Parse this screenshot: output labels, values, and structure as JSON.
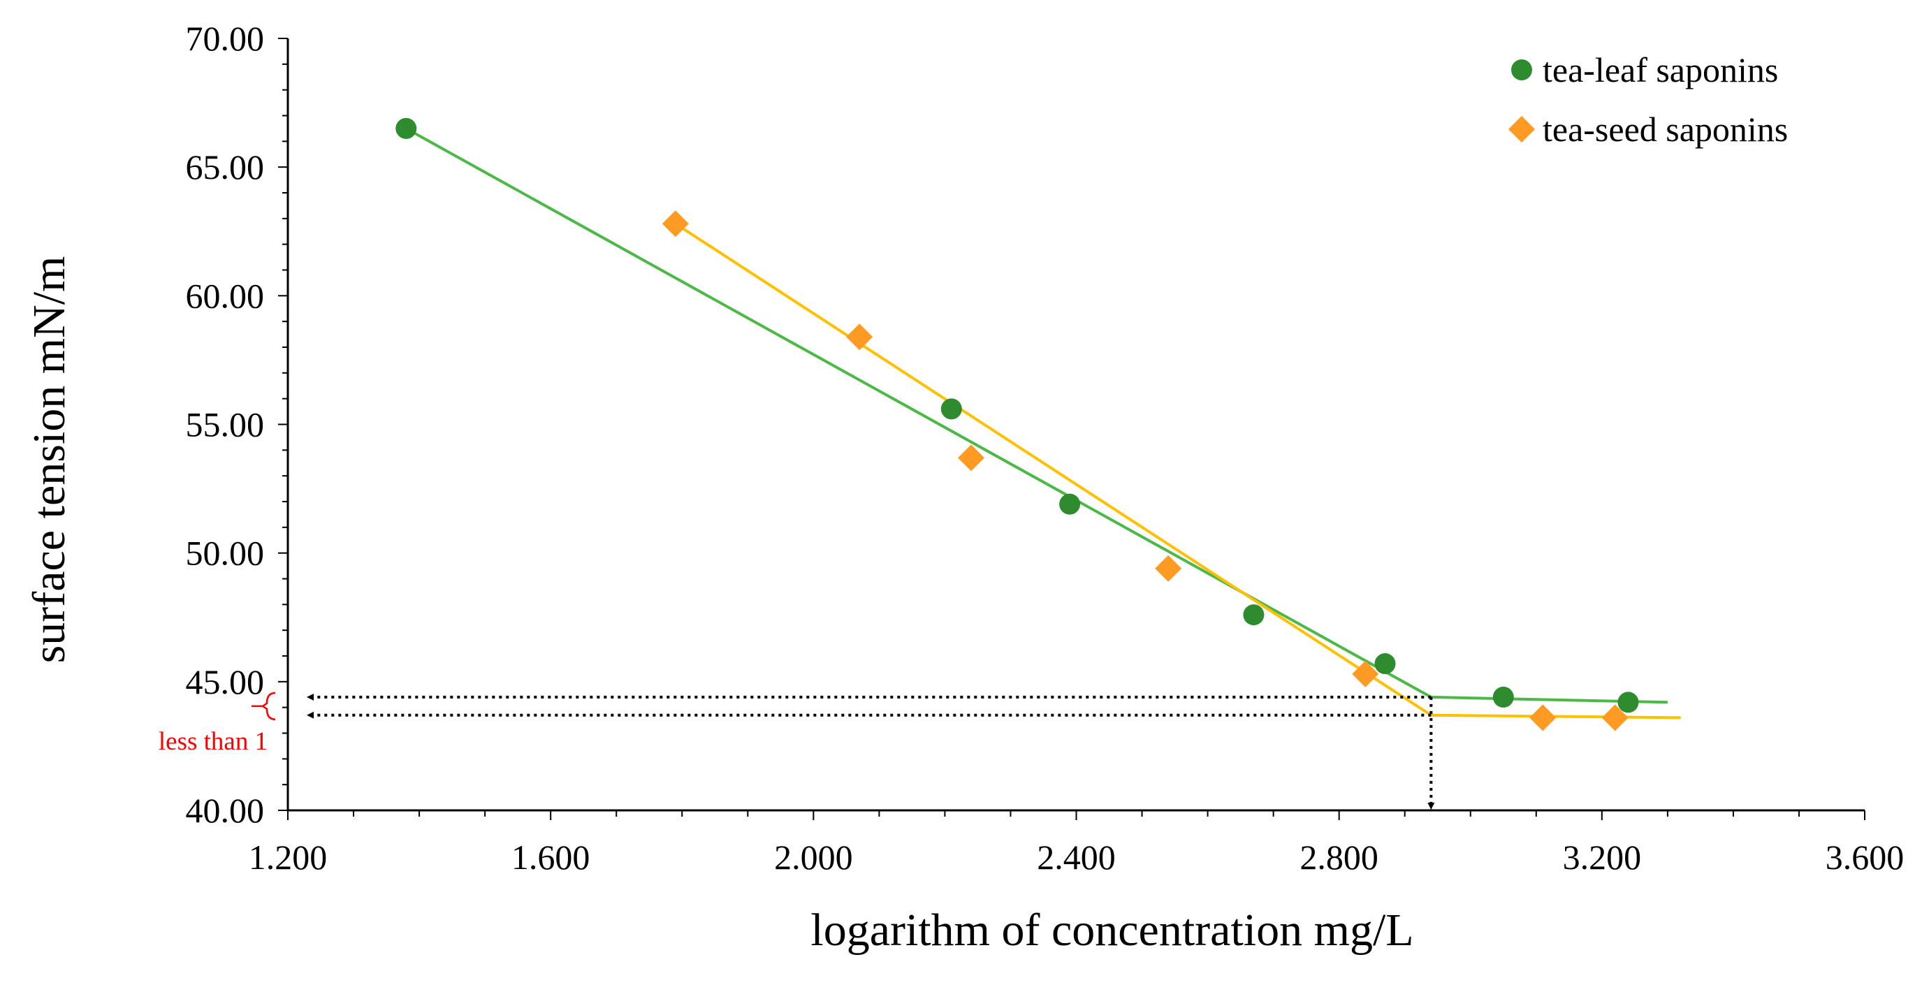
{
  "chart_data": {
    "type": "scatter",
    "title": "",
    "xlabel": "logarithm of concentration  mg/L",
    "ylabel": "surface tension  mN/m",
    "xlim": [
      1.2,
      3.6
    ],
    "ylim": [
      40,
      70
    ],
    "xticks": [
      {
        "value": 1.2,
        "label": "1.200"
      },
      {
        "value": 1.6,
        "label": "1.600"
      },
      {
        "value": 2.0,
        "label": "2.000"
      },
      {
        "value": 2.4,
        "label": "2.400"
      },
      {
        "value": 2.8,
        "label": "2.800"
      },
      {
        "value": 3.2,
        "label": "3.200"
      },
      {
        "value": 3.6,
        "label": "3.600"
      }
    ],
    "yticks": [
      {
        "value": 40,
        "label": "40.00"
      },
      {
        "value": 45,
        "label": "45.00"
      },
      {
        "value": 50,
        "label": "50.00"
      },
      {
        "value": 55,
        "label": "55.00"
      },
      {
        "value": 60,
        "label": "60.00"
      },
      {
        "value": 65,
        "label": "65.00"
      },
      {
        "value": 70,
        "label": "70.00"
      }
    ],
    "x_minor_step": 0.1,
    "y_minor_step": 1,
    "grid": false,
    "legend_position": "top-right",
    "series": [
      {
        "name": "tea-leaf saponins",
        "marker": "circle",
        "marker_color": "#2e8b2e",
        "line_color": "#4cb848",
        "points": [
          {
            "x": 1.38,
            "y": 66.5
          },
          {
            "x": 2.21,
            "y": 55.6
          },
          {
            "x": 2.39,
            "y": 51.9
          },
          {
            "x": 2.67,
            "y": 47.6
          },
          {
            "x": 2.87,
            "y": 45.7
          },
          {
            "x": 3.05,
            "y": 44.4
          },
          {
            "x": 3.24,
            "y": 44.2
          }
        ],
        "fit_lines": [
          {
            "from": [
              1.38,
              66.5
            ],
            "to": [
              2.94,
              44.4
            ]
          },
          {
            "from": [
              2.94,
              44.4
            ],
            "to": [
              3.3,
              44.2
            ]
          }
        ]
      },
      {
        "name": "tea-seed saponins",
        "marker": "diamond",
        "marker_color": "#ff9a22",
        "line_color": "#ffc000",
        "points": [
          {
            "x": 1.79,
            "y": 62.8
          },
          {
            "x": 2.07,
            "y": 58.4
          },
          {
            "x": 2.24,
            "y": 53.7
          },
          {
            "x": 2.54,
            "y": 49.4
          },
          {
            "x": 2.84,
            "y": 45.3
          },
          {
            "x": 3.11,
            "y": 43.6
          },
          {
            "x": 3.22,
            "y": 43.6
          }
        ],
        "fit_lines": [
          {
            "from": [
              1.79,
              62.8
            ],
            "to": [
              2.94,
              43.7
            ]
          },
          {
            "from": [
              2.94,
              43.7
            ],
            "to": [
              3.32,
              43.6
            ]
          }
        ]
      }
    ],
    "annotations": {
      "cmc_x": 2.94,
      "reference_y_values": [
        44.4,
        43.7
      ],
      "label": "less than 1",
      "label_color": "#ff0000"
    }
  }
}
